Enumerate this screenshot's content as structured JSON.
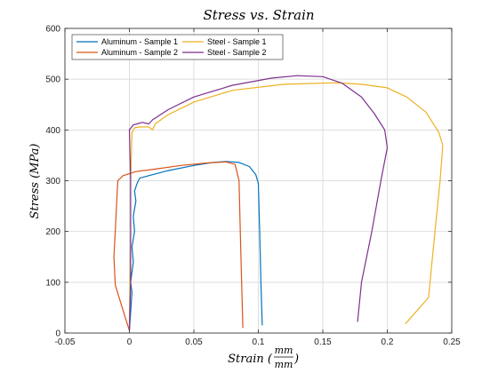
{
  "chart_data": {
    "type": "line",
    "title": "Stress vs.  Strain",
    "xlabel": "Strain (",
    "xlabel_numerator": "mm",
    "xlabel_denominator": "mm",
    "xlabel_close": ")",
    "ylabel": "Stress (MPa)",
    "xlim": [
      -0.05,
      0.25
    ],
    "ylim": [
      0,
      600
    ],
    "x_ticks": [
      -0.05,
      0,
      0.05,
      0.1,
      0.15,
      0.2,
      0.25
    ],
    "x_tick_labels": [
      "-0.05",
      "0",
      "0.05",
      "0.1",
      "0.15",
      "0.2",
      "0.25"
    ],
    "y_ticks": [
      0,
      100,
      200,
      300,
      400,
      500,
      600
    ],
    "y_tick_labels": [
      "0",
      "100",
      "200",
      "300",
      "400",
      "500",
      "600"
    ],
    "grid": true,
    "legend_position": "top-left",
    "series": [
      {
        "name": "Aluminum - Sample 1",
        "color": "#0072BD",
        "points": [
          [
            0,
            5
          ],
          [
            0.001,
            40
          ],
          [
            0.002,
            80
          ],
          [
            0.001,
            100
          ],
          [
            0.003,
            140
          ],
          [
            0.002,
            170
          ],
          [
            0.004,
            200
          ],
          [
            0.003,
            230
          ],
          [
            0.005,
            260
          ],
          [
            0.004,
            280
          ],
          [
            0.006,
            295
          ],
          [
            0.008,
            305
          ],
          [
            0.015,
            310
          ],
          [
            0.03,
            320
          ],
          [
            0.05,
            330
          ],
          [
            0.065,
            336
          ],
          [
            0.075,
            338
          ],
          [
            0.085,
            336
          ],
          [
            0.093,
            328
          ],
          [
            0.098,
            312
          ],
          [
            0.1,
            295
          ],
          [
            0.101,
            200
          ],
          [
            0.102,
            100
          ],
          [
            0.103,
            15
          ]
        ]
      },
      {
        "name": "Aluminum - Sample 2",
        "color": "#D95319",
        "points": [
          [
            0,
            5
          ],
          [
            -0.005,
            45
          ],
          [
            -0.011,
            95
          ],
          [
            -0.012,
            150
          ],
          [
            -0.011,
            200
          ],
          [
            -0.01,
            250
          ],
          [
            -0.009,
            300
          ],
          [
            -0.005,
            310
          ],
          [
            0.005,
            318
          ],
          [
            0.02,
            323
          ],
          [
            0.04,
            330
          ],
          [
            0.06,
            335
          ],
          [
            0.075,
            337
          ],
          [
            0.082,
            332
          ],
          [
            0.085,
            300
          ],
          [
            0.086,
            200
          ],
          [
            0.087,
            100
          ],
          [
            0.088,
            10
          ]
        ]
      },
      {
        "name": "Steel - Sample 1",
        "color": "#EDB120",
        "points": [
          [
            0,
            15
          ],
          [
            0.0005,
            100
          ],
          [
            0.001,
            200
          ],
          [
            0.001,
            300
          ],
          [
            0.002,
            395
          ],
          [
            0.004,
            404
          ],
          [
            0.008,
            406
          ],
          [
            0.015,
            406
          ],
          [
            0.018,
            400
          ],
          [
            0.02,
            412
          ],
          [
            0.03,
            430
          ],
          [
            0.05,
            455
          ],
          [
            0.08,
            478
          ],
          [
            0.12,
            490
          ],
          [
            0.16,
            493
          ],
          [
            0.18,
            490
          ],
          [
            0.2,
            483
          ],
          [
            0.215,
            465
          ],
          [
            0.23,
            435
          ],
          [
            0.24,
            395
          ],
          [
            0.243,
            370
          ],
          [
            0.241,
            300
          ],
          [
            0.237,
            200
          ],
          [
            0.232,
            70
          ],
          [
            0.214,
            18
          ]
        ]
      },
      {
        "name": "Steel - Sample 2",
        "color": "#7E2F8E",
        "points": [
          [
            0,
            5
          ],
          [
            0.001,
            100
          ],
          [
            0.001,
            200
          ],
          [
            0.001,
            300
          ],
          [
            0,
            400
          ],
          [
            0.003,
            410
          ],
          [
            0.006,
            412
          ],
          [
            0.01,
            415
          ],
          [
            0.015,
            412
          ],
          [
            0.018,
            420
          ],
          [
            0.03,
            440
          ],
          [
            0.05,
            465
          ],
          [
            0.08,
            488
          ],
          [
            0.11,
            502
          ],
          [
            0.13,
            507
          ],
          [
            0.15,
            505
          ],
          [
            0.165,
            492
          ],
          [
            0.18,
            465
          ],
          [
            0.19,
            432
          ],
          [
            0.198,
            400
          ],
          [
            0.2,
            365
          ],
          [
            0.195,
            300
          ],
          [
            0.188,
            200
          ],
          [
            0.18,
            100
          ],
          [
            0.177,
            22
          ]
        ]
      }
    ]
  }
}
